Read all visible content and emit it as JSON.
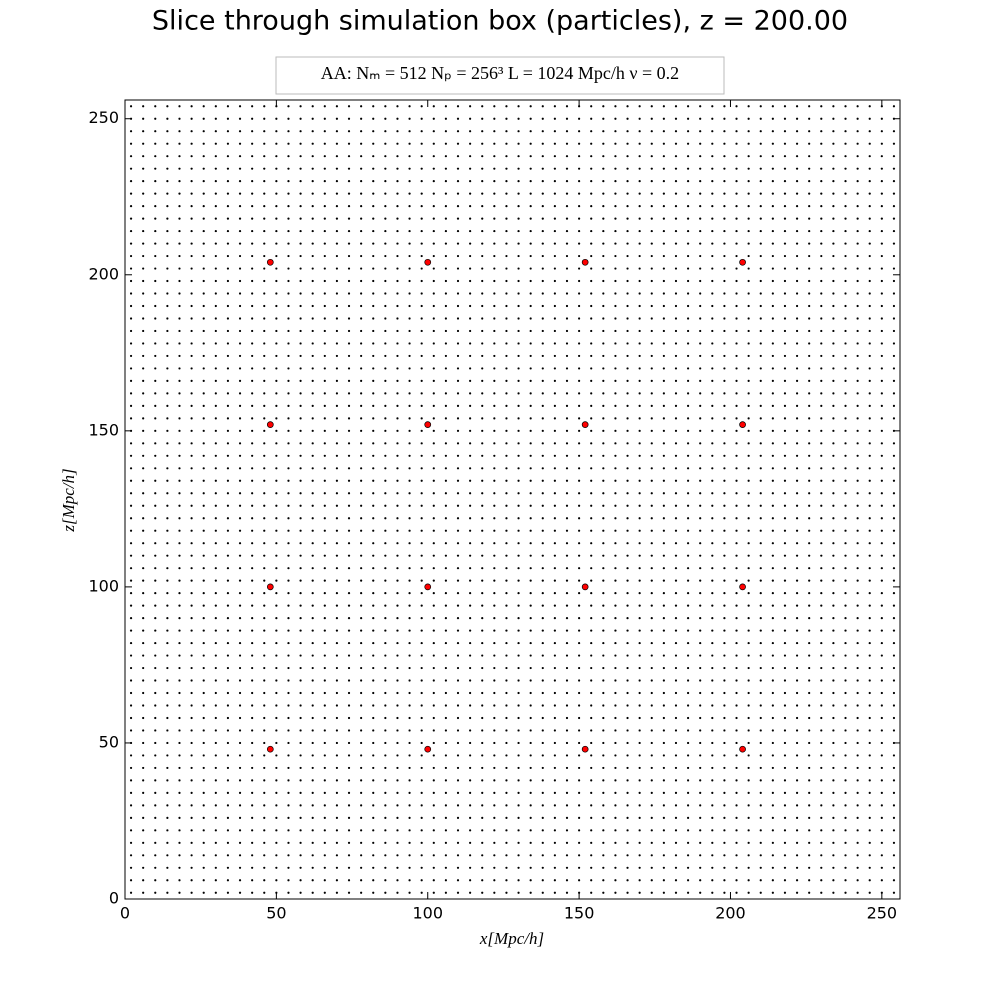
{
  "chart_data": {
    "type": "scatter",
    "title": "Slice through simulation box (particles), z = 200.00",
    "annotation": "AA:  Nₘ = 512   Nₚ = 256³   L = 1024 Mpc/h   ν = 0.2",
    "x_label": "x[Mpc/h]",
    "y_label": "z[Mpc/h]",
    "xlim": [
      0,
      256
    ],
    "ylim": [
      0,
      256
    ],
    "xticks": [
      0,
      50,
      100,
      150,
      200,
      250
    ],
    "yticks": [
      0,
      50,
      100,
      150,
      200,
      250
    ],
    "lattice": {
      "color": "#000000",
      "x": [
        2,
        6,
        10,
        14,
        18,
        22,
        26,
        30,
        34,
        38,
        42,
        46,
        50,
        54,
        58,
        62,
        66,
        70,
        74,
        78,
        82,
        86,
        90,
        94,
        98,
        102,
        106,
        110,
        114,
        118,
        122,
        126,
        130,
        134,
        138,
        142,
        146,
        150,
        154,
        158,
        162,
        166,
        170,
        174,
        178,
        182,
        186,
        190,
        194,
        198,
        202,
        206,
        210,
        214,
        218,
        222,
        226,
        230,
        234,
        238,
        242,
        246,
        250,
        254
      ],
      "y": [
        2,
        6,
        10,
        14,
        18,
        22,
        26,
        30,
        34,
        38,
        42,
        46,
        50,
        54,
        58,
        62,
        66,
        70,
        74,
        78,
        82,
        86,
        90,
        94,
        98,
        102,
        106,
        110,
        114,
        118,
        122,
        126,
        130,
        134,
        138,
        142,
        146,
        150,
        154,
        158,
        162,
        166,
        170,
        174,
        178,
        182,
        186,
        190,
        194,
        198,
        202,
        206,
        210,
        214,
        218,
        222,
        226,
        230,
        234,
        238,
        242,
        246,
        250,
        254
      ]
    },
    "series": [
      {
        "color": "#ff0000",
        "x": [
          48,
          100,
          152,
          204,
          48,
          100,
          152,
          204,
          48,
          100,
          152,
          204,
          48,
          100,
          152,
          204
        ],
        "y": [
          48,
          48,
          48,
          48,
          100,
          100,
          100,
          100,
          152,
          152,
          152,
          152,
          204,
          204,
          204,
          204
        ]
      }
    ]
  }
}
